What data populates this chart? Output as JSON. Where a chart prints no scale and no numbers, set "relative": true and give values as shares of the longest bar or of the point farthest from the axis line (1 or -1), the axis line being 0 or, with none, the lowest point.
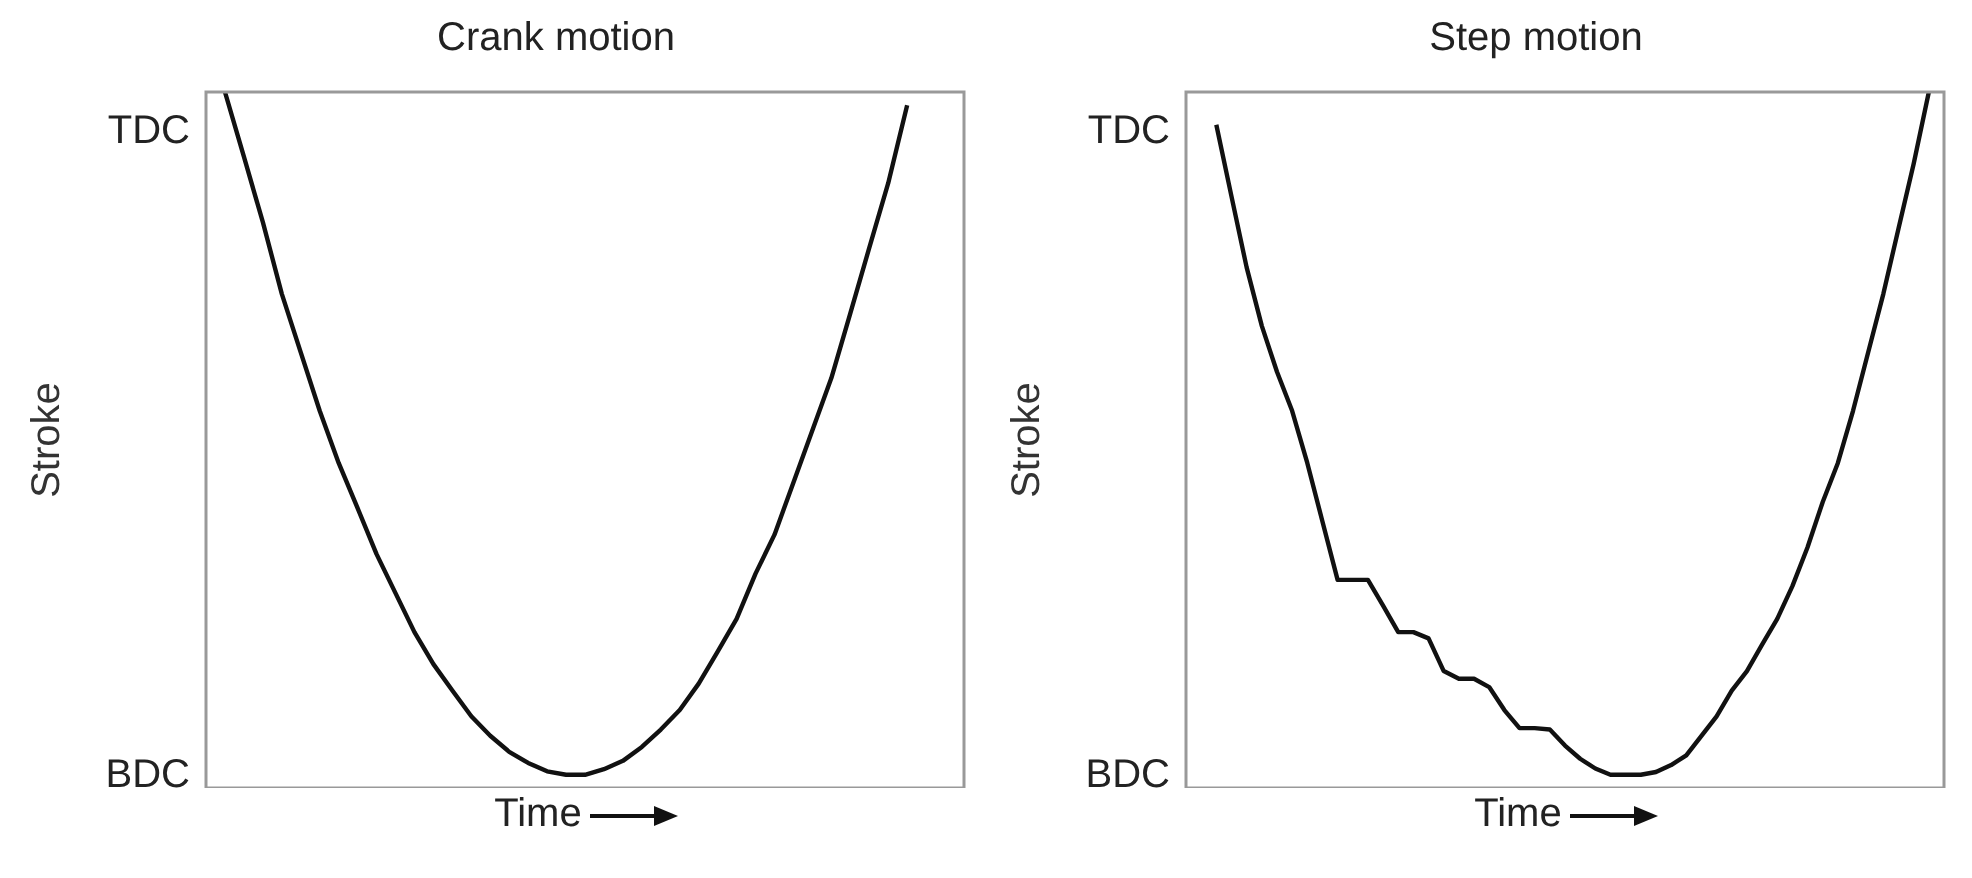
{
  "chart_data": [
    {
      "type": "line",
      "title": "Crank motion",
      "xlabel": "Time",
      "ylabel": "Stroke",
      "relative": true,
      "annotations": [
        "TDC",
        "BDC"
      ],
      "grid": false,
      "marker": "none",
      "categories": [
        null,
        null,
        null,
        null,
        null,
        null,
        null,
        null,
        null,
        null,
        null,
        null,
        null,
        null,
        null,
        null,
        null,
        null,
        null,
        null,
        null,
        null,
        null,
        null,
        null,
        null,
        null,
        null,
        null,
        null,
        null,
        null,
        null,
        null,
        null,
        null,
        null,
        null,
        null,
        null,
        null
      ],
      "series": [
        {
          "color": "#111111",
          "values": [
            null,
            1,
            0.907,
            0.813,
            0.71,
            0.626,
            0.542,
            0.467,
            0.402,
            0.336,
            0.28,
            0.224,
            0.178,
            0.14,
            0.103,
            0.075,
            0.052,
            0.036,
            0.024,
            0.019,
            0.019,
            0.027,
            0.039,
            0.059,
            0.084,
            0.112,
            0.15,
            0.196,
            0.243,
            0.308,
            0.364,
            0.439,
            0.514,
            0.589,
            0.682,
            0.776,
            0.869,
            0.981,
            null,
            null,
            null
          ]
        }
      ]
    },
    {
      "type": "line",
      "title": "Step motion",
      "xlabel": "Time",
      "ylabel": "Stroke",
      "relative": true,
      "annotations": [
        "TDC",
        "BDC"
      ],
      "grid": false,
      "marker": "none",
      "categories": [
        null,
        null,
        null,
        null,
        null,
        null,
        null,
        null,
        null,
        null,
        null,
        null,
        null,
        null,
        null,
        null,
        null,
        null,
        null,
        null,
        null,
        null,
        null,
        null,
        null,
        null,
        null,
        null,
        null,
        null,
        null,
        null,
        null,
        null,
        null,
        null,
        null,
        null,
        null,
        null,
        null,
        null,
        null,
        null,
        null,
        null,
        null,
        null,
        null,
        null,
        null
      ],
      "series": [
        {
          "color": "#111111",
          "values": [
            null,
            null,
            0.953,
            0.85,
            0.748,
            0.664,
            0.598,
            0.542,
            0.467,
            0.383,
            0.299,
            0.299,
            0.299,
            0.262,
            0.224,
            0.224,
            0.215,
            0.168,
            0.157,
            0.157,
            0.145,
            0.112,
            0.086,
            0.086,
            0.084,
            0.061,
            0.042,
            0.028,
            0.019,
            0.019,
            0.019,
            0.023,
            0.033,
            0.047,
            0.075,
            0.103,
            0.14,
            0.168,
            0.206,
            0.243,
            0.29,
            0.346,
            0.411,
            0.467,
            0.542,
            0.626,
            0.71,
            0.804,
            0.897,
            1,
            null
          ]
        }
      ]
    }
  ]
}
